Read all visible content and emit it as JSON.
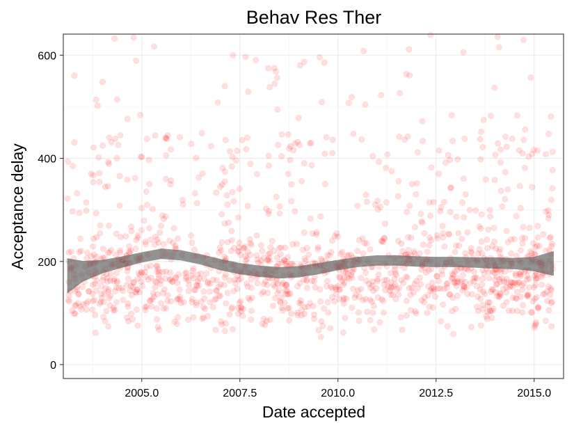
{
  "chart_data": {
    "type": "scatter",
    "title": "Behav Res Ther",
    "xlabel": "Date accepted",
    "ylabel": "Acceptance delay",
    "xlim": [
      2003.0,
      2015.75
    ],
    "ylim": [
      -27,
      641
    ],
    "x_ticks": [
      2005.0,
      2007.5,
      2010.0,
      2012.5,
      2015.0
    ],
    "x_tick_labels": [
      "2005.0",
      "2007.5",
      "2010.0",
      "2012.5",
      "2015.0"
    ],
    "y_ticks": [
      0,
      200,
      400,
      600
    ],
    "y_tick_labels": [
      "0",
      "200",
      "400",
      "600"
    ],
    "grid": true,
    "point_color": "#ff0000",
    "point_opacity": 0.12,
    "smooth_color": "#595959",
    "smooth_opacity": 0.65,
    "point_count": 1400,
    "point_random_seed": 20150601,
    "point_x_range": [
      2003.1,
      2015.5
    ],
    "point_y_range": [
      0,
      640
    ],
    "point_y_median": 165,
    "smooth_band": {
      "x": [
        2003.1,
        2003.5,
        2004.0,
        2004.5,
        2005.0,
        2005.5,
        2006.0,
        2006.5,
        2007.0,
        2007.5,
        2008.0,
        2008.5,
        2009.0,
        2009.5,
        2010.0,
        2010.5,
        2011.0,
        2011.5,
        2012.0,
        2012.5,
        2013.0,
        2013.5,
        2014.0,
        2014.5,
        2015.0,
        2015.5
      ],
      "y": [
        172,
        181,
        190,
        199,
        208,
        215,
        212,
        204,
        194,
        186,
        181,
        178,
        180,
        186,
        193,
        199,
        202,
        202,
        200,
        199,
        199,
        198,
        197,
        196,
        195,
        196
      ],
      "se": [
        34,
        20,
        13,
        11,
        10,
        10,
        10,
        10,
        11,
        11,
        11,
        11,
        11,
        11,
        10,
        10,
        10,
        10,
        10,
        10,
        10,
        10,
        11,
        11,
        14,
        24
      ]
    }
  }
}
